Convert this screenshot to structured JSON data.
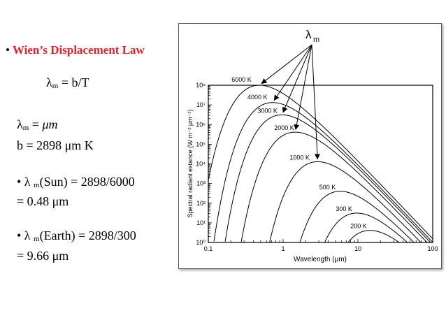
{
  "slide": {
    "bullet": "•",
    "title": "Wien’s Displacement Law",
    "eq_lambda": "λ",
    "eq_sub": "m",
    "eq_rhs": " = b/T",
    "l1_lambda": "λ",
    "l1_sub": "m",
    "l1_eq": " = ",
    "l1_unit": "μm",
    "l2": "b = 2898 μm K",
    "l3_pre": "• λ ",
    "l3_sub": "m",
    "l3_post": "(Sun) = 2898/6000",
    "l4": "= 0.48 μm",
    "l5_pre": "• λ ",
    "l5_sub": "m",
    "l5_post": "(Earth) = 2898/300",
    "l6": "= 9.66 μm"
  },
  "chart_data": {
    "type": "line",
    "title": "",
    "xlabel": "Wavelength (μm)",
    "ylabel": "Spectral radiant extance (W m⁻² μm⁻¹)",
    "xscale": "log",
    "yscale": "log",
    "xlim": [
      0.1,
      100
    ],
    "ylim": [
      1,
      100000000
    ],
    "xtick_labels": [
      "0.1",
      "1",
      "10",
      "100"
    ],
    "ytick_labels": [
      "10⁰",
      "10¹",
      "10²",
      "10³",
      "10⁴",
      "10⁵",
      "10⁶",
      "10⁷",
      "10⁸"
    ],
    "peak_label": "λ",
    "peak_label_sub": "m",
    "series": [
      {
        "name": "6000 K",
        "temperature_K": 6000
      },
      {
        "name": "4000 K",
        "temperature_K": 4000
      },
      {
        "name": "3000 K",
        "temperature_K": 3000
      },
      {
        "name": "2000 K",
        "temperature_K": 2000
      },
      {
        "name": "1000 K",
        "temperature_K": 1000
      },
      {
        "name": "500 K",
        "temperature_K": 500
      },
      {
        "name": "300 K",
        "temperature_K": 300
      },
      {
        "name": "200 K",
        "temperature_K": 200
      }
    ]
  }
}
